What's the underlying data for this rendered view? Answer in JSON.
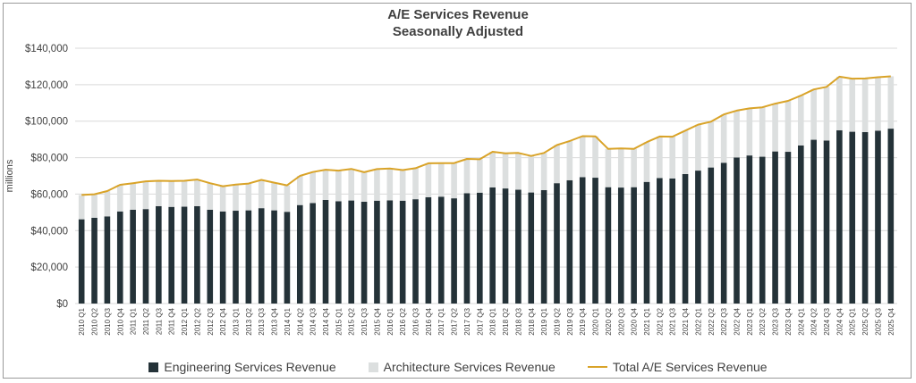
{
  "chart_data": {
    "type": "bar",
    "title": "A/E Services Revenue",
    "subtitle": "Seasonally Adjusted",
    "ylabel": "millions",
    "xlabel": "",
    "ylim": [
      0,
      140000
    ],
    "yticks": [
      "$0",
      "$20,000",
      "$40,000",
      "$60,000",
      "$80,000",
      "$100,000",
      "$120,000",
      "$140,000"
    ],
    "grid": true,
    "stacked": true,
    "legend_position": "bottom",
    "categories": [
      "2010 Q1",
      "2010 Q2",
      "2010 Q3",
      "2010 Q4",
      "2011 Q1",
      "2011 Q2",
      "2011 Q3",
      "2011 Q4",
      "2012 Q1",
      "2012 Q2",
      "2012 Q3",
      "2012 Q4",
      "2013 Q1",
      "2013 Q2",
      "2013 Q3",
      "2013 Q4",
      "2014 Q1",
      "2014 Q2",
      "2014 Q3",
      "2014 Q4",
      "2015 Q1",
      "2015 Q2",
      "2015 Q3",
      "2015 Q4",
      "2016 Q1",
      "2016 Q2",
      "2016 Q3",
      "2016 Q4",
      "2017 Q1",
      "2017 Q2",
      "2017 Q3",
      "2017 Q4",
      "2018 Q1",
      "2018 Q2",
      "2018 Q3",
      "2018 Q4",
      "2019 Q1",
      "2019 Q2",
      "2019 Q3",
      "2019 Q4",
      "2020 Q1",
      "2020 Q2",
      "2020 Q3",
      "2020 Q4",
      "2021 Q1",
      "2021 Q2",
      "2021 Q3",
      "2021 Q4",
      "2022 Q1",
      "2022 Q2",
      "2022 Q3",
      "2022 Q4",
      "2023 Q1",
      "2023 Q2",
      "2023 Q3",
      "2023 Q4",
      "2024 Q1",
      "2024 Q2",
      "2024 Q3",
      "2024 Q4",
      "2025 Q1",
      "2025 Q2",
      "2025 Q3",
      "2025 Q4"
    ],
    "series": [
      {
        "name": "Engineering Services Revenue",
        "kind": "bar",
        "color": "#243238",
        "values": [
          46200,
          47000,
          47800,
          50500,
          51400,
          51800,
          53400,
          53000,
          53100,
          53400,
          51400,
          50500,
          50900,
          51100,
          52300,
          51100,
          50300,
          54000,
          55100,
          56800,
          56100,
          56500,
          55800,
          56400,
          56600,
          56400,
          57200,
          58300,
          58600,
          57700,
          60500,
          60800,
          63700,
          63100,
          62400,
          60900,
          62200,
          66000,
          67600,
          69300,
          69000,
          63800,
          63600,
          63800,
          66700,
          68800,
          68600,
          71000,
          72900,
          74600,
          77200,
          80100,
          81200,
          80500,
          83400,
          83200,
          86700,
          89800,
          89400,
          95000,
          94200,
          94000,
          94800,
          95900
        ]
      },
      {
        "name": "Architecture Services Revenue",
        "kind": "bar",
        "color": "#dcdfdf",
        "values": [
          13300,
          12900,
          13900,
          14600,
          14600,
          15200,
          13900,
          14200,
          14200,
          14600,
          14600,
          13800,
          14300,
          14700,
          15500,
          15200,
          14500,
          16000,
          17000,
          16600,
          16800,
          17300,
          16200,
          17300,
          17400,
          16800,
          17000,
          18600,
          18400,
          19300,
          18800,
          18300,
          19500,
          19300,
          20200,
          20000,
          20400,
          20900,
          21500,
          22500,
          22700,
          21000,
          21500,
          21000,
          21800,
          22800,
          22900,
          23800,
          25200,
          25100,
          26500,
          25700,
          25800,
          27100,
          26200,
          27900,
          27300,
          27600,
          29400,
          29400,
          29100,
          29400,
          29300,
          28700
        ]
      },
      {
        "name": "Total A/E Services Revenue",
        "kind": "line",
        "color": "#d9a328",
        "values": [
          59500,
          59900,
          61700,
          65100,
          66000,
          67000,
          67300,
          67200,
          67300,
          68000,
          66000,
          64300,
          65200,
          65800,
          67800,
          66300,
          64800,
          70000,
          72100,
          73400,
          72900,
          73800,
          72000,
          73700,
          74000,
          73200,
          74200,
          76900,
          77000,
          77000,
          79300,
          79100,
          83200,
          82400,
          82600,
          80900,
          82600,
          86900,
          89100,
          91800,
          91700,
          84800,
          85100,
          84800,
          88500,
          91600,
          91500,
          94800,
          98100,
          99700,
          103700,
          105800,
          107000,
          107600,
          109600,
          111100,
          114000,
          117400,
          118800,
          124400,
          123300,
          123400,
          124100,
          124600
        ]
      }
    ]
  }
}
